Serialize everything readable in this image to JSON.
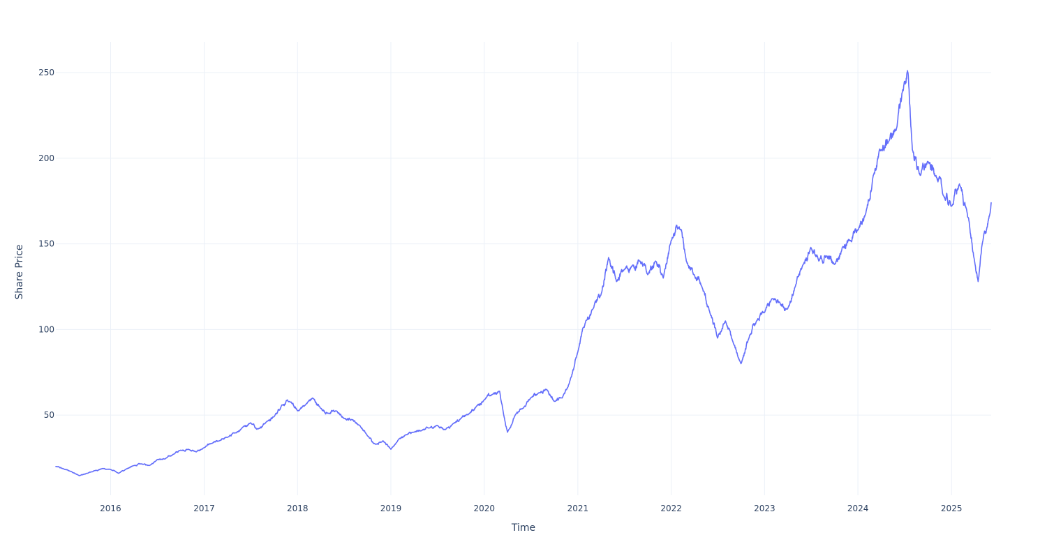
{
  "chart_data": {
    "type": "line",
    "title": "",
    "xlabel": "Time",
    "ylabel": "Share Price",
    "x_range": [
      "2015-06-01",
      "2025-06-05"
    ],
    "ylim": [
      3.2,
      268
    ],
    "x_ticks": [
      "2016",
      "2017",
      "2018",
      "2019",
      "2020",
      "2021",
      "2022",
      "2023",
      "2024",
      "2025"
    ],
    "y_ticks": [
      50,
      100,
      150,
      200,
      250
    ],
    "grid": true,
    "legend": "none",
    "colors": {
      "line": "#636efa",
      "grid": "#ebf0f8",
      "text": "#2a3f5f",
      "background": "#ffffff"
    },
    "series": [
      {
        "points": [
          [
            "2015-06-01",
            20.0
          ],
          [
            "2015-07-01",
            18.6
          ],
          [
            "2015-08-01",
            17.0
          ],
          [
            "2015-09-01",
            14.6
          ],
          [
            "2015-10-01",
            16.0
          ],
          [
            "2015-11-01",
            17.6
          ],
          [
            "2015-12-01",
            18.8
          ],
          [
            "2016-01-01",
            18.2
          ],
          [
            "2016-02-01",
            16.0
          ],
          [
            "2016-03-01",
            18.4
          ],
          [
            "2016-04-01",
            20.5
          ],
          [
            "2016-05-01",
            21.5
          ],
          [
            "2016-06-01",
            20.6
          ],
          [
            "2016-07-01",
            24.0
          ],
          [
            "2016-08-01",
            24.4
          ],
          [
            "2016-09-01",
            27.0
          ],
          [
            "2016-10-01",
            29.5
          ],
          [
            "2016-11-01",
            30.0
          ],
          [
            "2016-12-01",
            28.5
          ],
          [
            "2017-01-01",
            31.0
          ],
          [
            "2017-02-01",
            33.5
          ],
          [
            "2017-03-01",
            35.0
          ],
          [
            "2017-04-01",
            37.0
          ],
          [
            "2017-05-01",
            39.5
          ],
          [
            "2017-06-01",
            43.0
          ],
          [
            "2017-07-01",
            45.5
          ],
          [
            "2017-08-01",
            42.0
          ],
          [
            "2017-09-01",
            46.0
          ],
          [
            "2017-10-01",
            49.0
          ],
          [
            "2017-11-01",
            56.0
          ],
          [
            "2017-12-01",
            58.0
          ],
          [
            "2018-01-01",
            52.5
          ],
          [
            "2018-02-01",
            56.0
          ],
          [
            "2018-03-01",
            60.0
          ],
          [
            "2018-04-01",
            54.0
          ],
          [
            "2018-05-01",
            51.0
          ],
          [
            "2018-06-01",
            52.5
          ],
          [
            "2018-07-01",
            48.0
          ],
          [
            "2018-08-01",
            47.5
          ],
          [
            "2018-09-01",
            44.0
          ],
          [
            "2018-10-01",
            38.0
          ],
          [
            "2018-11-01",
            33.0
          ],
          [
            "2018-12-01",
            35.0
          ],
          [
            "2019-01-01",
            30.0
          ],
          [
            "2019-02-01",
            36.0
          ],
          [
            "2019-03-01",
            38.5
          ],
          [
            "2019-04-01",
            40.0
          ],
          [
            "2019-05-01",
            41.0
          ],
          [
            "2019-06-01",
            42.5
          ],
          [
            "2019-07-01",
            44.0
          ],
          [
            "2019-08-01",
            41.5
          ],
          [
            "2019-09-01",
            45.0
          ],
          [
            "2019-10-01",
            48.0
          ],
          [
            "2019-11-01",
            50.5
          ],
          [
            "2019-12-01",
            55.0
          ],
          [
            "2020-01-01",
            59.0
          ],
          [
            "2020-02-01",
            62.0
          ],
          [
            "2020-03-01",
            64.0
          ],
          [
            "2020-03-15",
            52.0
          ],
          [
            "2020-04-01",
            40.0
          ],
          [
            "2020-05-01",
            50.0
          ],
          [
            "2020-06-01",
            54.0
          ],
          [
            "2020-07-01",
            60.0
          ],
          [
            "2020-08-01",
            63.0
          ],
          [
            "2020-09-01",
            65.0
          ],
          [
            "2020-10-01",
            58.0
          ],
          [
            "2020-11-01",
            60.0
          ],
          [
            "2020-12-01",
            70.0
          ],
          [
            "2021-01-01",
            87.0
          ],
          [
            "2021-02-01",
            105.0
          ],
          [
            "2021-03-01",
            112.0
          ],
          [
            "2021-04-01",
            120.0
          ],
          [
            "2021-05-01",
            142.0
          ],
          [
            "2021-06-01",
            128.0
          ],
          [
            "2021-07-01",
            135.0
          ],
          [
            "2021-08-01",
            137.0
          ],
          [
            "2021-09-01",
            140.0
          ],
          [
            "2021-10-01",
            132.0
          ],
          [
            "2021-11-01",
            140.0
          ],
          [
            "2021-12-01",
            130.0
          ],
          [
            "2022-01-01",
            152.0
          ],
          [
            "2022-02-01",
            160.0
          ],
          [
            "2022-03-01",
            140.0
          ],
          [
            "2022-04-01",
            132.0
          ],
          [
            "2022-05-01",
            125.0
          ],
          [
            "2022-06-01",
            110.0
          ],
          [
            "2022-07-01",
            95.0
          ],
          [
            "2022-08-01",
            105.0
          ],
          [
            "2022-09-01",
            92.0
          ],
          [
            "2022-10-01",
            80.0
          ],
          [
            "2022-11-01",
            95.0
          ],
          [
            "2022-12-01",
            105.0
          ],
          [
            "2023-01-01",
            110.0
          ],
          [
            "2023-02-01",
            118.0
          ],
          [
            "2023-03-01",
            116.0
          ],
          [
            "2023-04-01",
            112.0
          ],
          [
            "2023-05-01",
            125.0
          ],
          [
            "2023-06-01",
            138.0
          ],
          [
            "2023-07-01",
            148.0
          ],
          [
            "2023-08-01",
            140.0
          ],
          [
            "2023-09-01",
            143.0
          ],
          [
            "2023-10-01",
            138.0
          ],
          [
            "2023-11-01",
            148.0
          ],
          [
            "2023-12-01",
            152.0
          ],
          [
            "2024-01-01",
            158.0
          ],
          [
            "2024-02-01",
            168.0
          ],
          [
            "2024-03-01",
            190.0
          ],
          [
            "2024-04-01",
            205.0
          ],
          [
            "2024-05-01",
            210.0
          ],
          [
            "2024-06-01",
            218.0
          ],
          [
            "2024-07-01",
            245.0
          ],
          [
            "2024-07-15",
            250.0
          ],
          [
            "2024-08-01",
            205.0
          ],
          [
            "2024-09-01",
            190.0
          ],
          [
            "2024-10-01",
            198.0
          ],
          [
            "2024-11-01",
            190.0
          ],
          [
            "2024-12-01",
            178.0
          ],
          [
            "2025-01-01",
            172.0
          ],
          [
            "2025-02-01",
            185.0
          ],
          [
            "2025-03-01",
            170.0
          ],
          [
            "2025-04-01",
            140.0
          ],
          [
            "2025-04-15",
            128.0
          ],
          [
            "2025-05-01",
            150.0
          ],
          [
            "2025-06-01",
            168.0
          ],
          [
            "2025-06-05",
            174.0
          ]
        ]
      }
    ]
  }
}
